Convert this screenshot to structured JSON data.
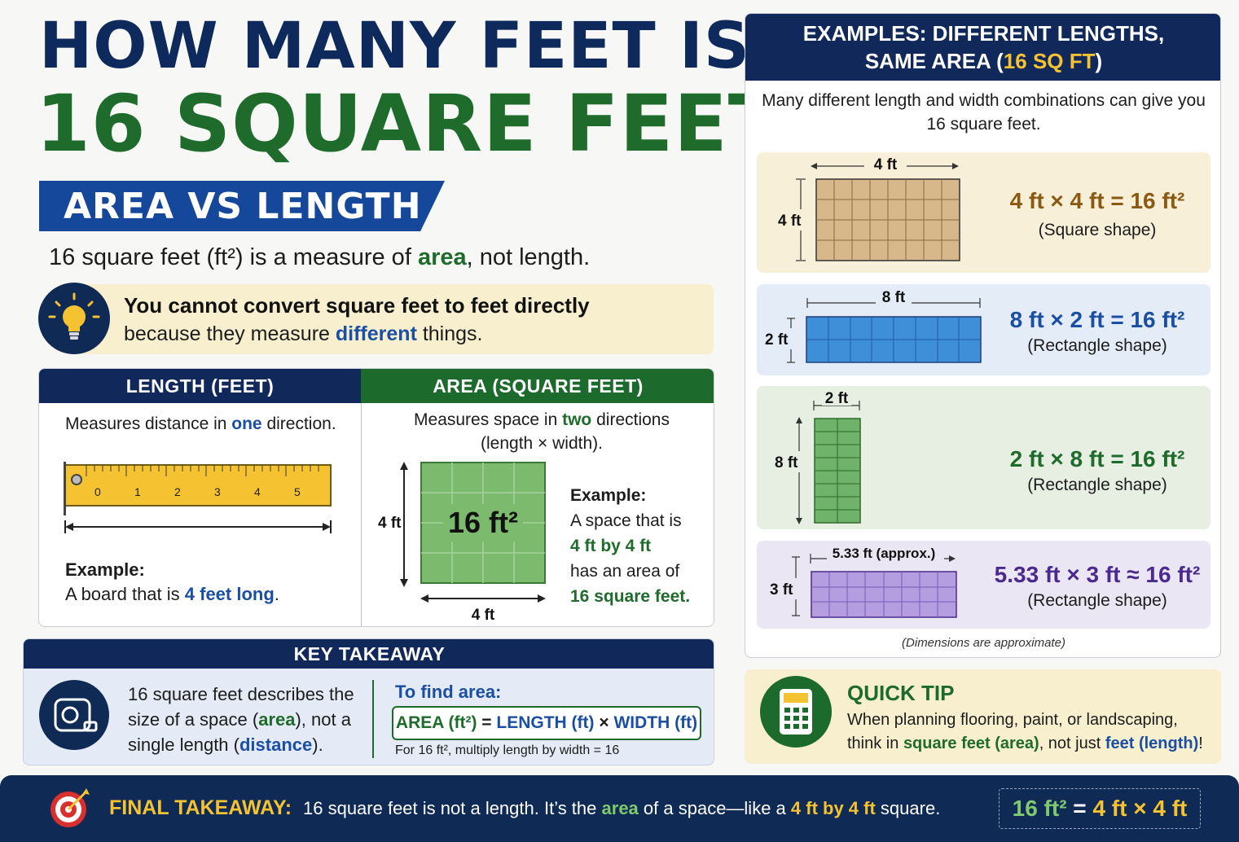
{
  "title": {
    "line1": "HOW MANY FEET IS",
    "line2": "16 SQUARE FEET?"
  },
  "section_ribbon": "AREA VS LENGTH",
  "intro": {
    "pre": "16 square feet (ft²) is a measure of ",
    "highlight": "area",
    "post": ", not length."
  },
  "tip": {
    "bold_line": "You cannot convert square feet to feet directly",
    "pre": "because they measure ",
    "highlight": "different",
    "post": " things."
  },
  "length_panel": {
    "header": "LENGTH (FEET)",
    "desc_pre": "Measures distance in ",
    "desc_highlight": "one",
    "desc_post": " direction.",
    "ruler_ticks": [
      "0",
      "1",
      "2",
      "3",
      "4",
      "5"
    ],
    "example_label": "Example:",
    "example_pre": "A board that is ",
    "example_highlight": "4 feet long",
    "example_post": "."
  },
  "area_panel": {
    "header": "AREA (SQUARE FEET)",
    "desc_pre": "Measures space in ",
    "desc_highlight": "two",
    "desc_post": " directions",
    "desc_line2": "(length × width).",
    "grid_label": "16 ft²",
    "side_label": "4 ft",
    "bottom_label": "4 ft",
    "example_label": "Example:",
    "example_l1": "A space that is",
    "example_l2": "4 ft by 4 ft",
    "example_l3": "has an area of",
    "example_l4": "16 square feet."
  },
  "key_takeaway": {
    "header": "KEY TAKEAWAY",
    "t1": "16 square feet describes the size of a space (",
    "t_area": "area",
    "t2": "), not a single length (",
    "t_distance": "distance",
    "t3": ").",
    "find_label": "To find area:",
    "f_area": "AREA (ft²)",
    "f_eq": " = ",
    "f_length": "LENGTH (ft)",
    "f_times": " × ",
    "f_width": "WIDTH (ft)",
    "note": "For 16 ft², multiply length by width = 16"
  },
  "examples": {
    "header_l1": "EXAMPLES: DIFFERENT LENGTHS,",
    "header_l2_pre": "SAME AREA (",
    "header_l2_hl": "16 SQ FT",
    "header_l2_post": ")",
    "intro": "Many different length and width combinations can give you 16 square feet.",
    "items": [
      {
        "top_label": "4 ft",
        "side_label": "4 ft",
        "equation": "4 ft × 4 ft = 16 ft²",
        "shape": "(Square shape)",
        "color": "#d7b88a",
        "eq_color": "#8a5a12"
      },
      {
        "top_label": "8 ft",
        "side_label": "2 ft",
        "equation": "8 ft × 2 ft = 16 ft²",
        "shape": "(Rectangle shape)",
        "color": "#3f8fd8",
        "eq_color": "#1a4fa3"
      },
      {
        "top_label": "2 ft",
        "side_label": "8 ft",
        "equation": "2 ft × 8 ft = 16 ft²",
        "shape": "(Rectangle shape)",
        "color": "#6fb26a",
        "eq_color": "#1e6b2c"
      },
      {
        "top_label": "5.33 ft (approx.)",
        "side_label": "3 ft",
        "equation": "5.33 ft × 3 ft ≈ 16 ft²",
        "shape": "(Rectangle shape)",
        "color": "#b49ee0",
        "eq_color": "#4b2a8e"
      }
    ],
    "note": "(Dimensions are approximate)"
  },
  "quick_tip": {
    "header": "QUICK TIP",
    "t1": "When planning flooring, paint, or landscaping, think in ",
    "hl1": "square feet (area)",
    "t2": ", not just ",
    "hl2": "feet (length)",
    "t3": "!"
  },
  "footer": {
    "label": "FINAL TAKEAWAY:",
    "t1": "16 square feet is not a length.   It’s the ",
    "hl_area": "area",
    "t2": " of a space—like a ",
    "hl_dims": "4 ft by 4 ft",
    "t3": " square.",
    "box_a": "16 ft²",
    "box_eq": " = ",
    "box_b": "4 ft × 4 ft"
  },
  "colors": {
    "navy": "#10285a",
    "green": "#1c6a2c",
    "blue": "#1a4fa3",
    "gold": "#f5c231"
  }
}
